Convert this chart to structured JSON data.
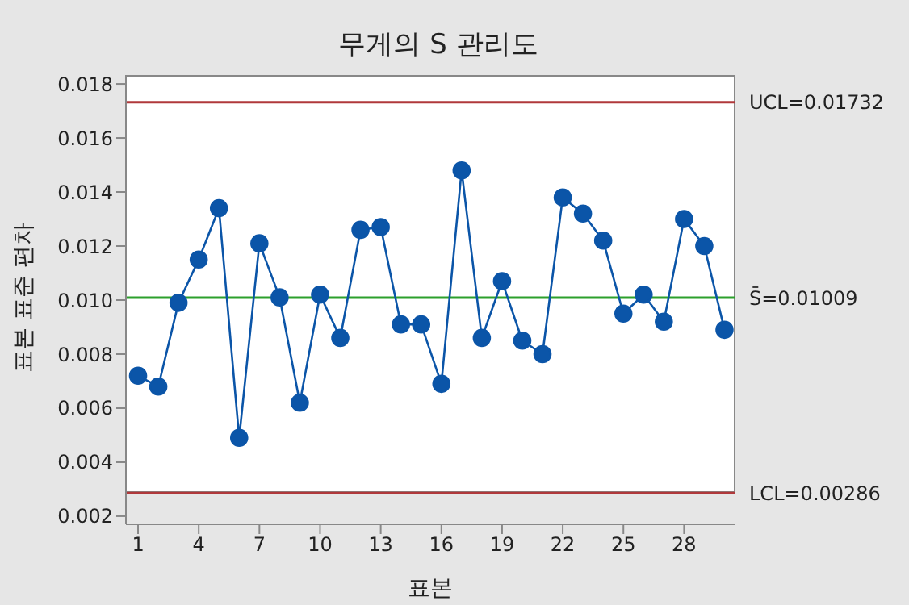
{
  "chart_data": {
    "type": "line",
    "title": "무게의 S 관리도",
    "xlabel": "표본",
    "ylabel": "표본 표준 편차",
    "x": [
      1,
      2,
      3,
      4,
      5,
      6,
      7,
      8,
      9,
      10,
      11,
      12,
      13,
      14,
      15,
      16,
      17,
      18,
      19,
      20,
      21,
      22,
      23,
      24,
      25,
      26,
      27,
      28,
      29,
      30
    ],
    "series": [
      {
        "color": "#0b55a8",
        "values": [
          0.0072,
          0.0068,
          0.0099,
          0.0115,
          0.0134,
          0.0049,
          0.0121,
          0.0101,
          0.0062,
          0.0102,
          0.0086,
          0.0126,
          0.0127,
          0.0091,
          0.0091,
          0.0069,
          0.0148,
          0.0086,
          0.0107,
          0.0085,
          0.008,
          0.0138,
          0.0132,
          0.0122,
          0.0095,
          0.0102,
          0.0092,
          0.013,
          0.012,
          0.0089
        ]
      }
    ],
    "xlim": [
      0.4,
      30.5
    ],
    "xticks": [
      1,
      4,
      7,
      10,
      13,
      16,
      19,
      22,
      25,
      28
    ],
    "ylim": [
      0.0017,
      0.0183
    ],
    "yticks": [
      0.002,
      0.004,
      0.006,
      0.008,
      {
        "value": 0.01,
        "label": "0.010"
      },
      0.012,
      0.014,
      0.016,
      0.018
    ],
    "ref_lines": [
      {
        "axis": "y",
        "value": 0.01732,
        "label": "UCL=0.01732",
        "color": "#b0393b"
      },
      {
        "axis": "y",
        "value": 0.01009,
        "label": "S̄=0.01009",
        "color": "#2ca02c"
      },
      {
        "axis": "y",
        "value": 0.00286,
        "label": "LCL=0.00286",
        "color": "#b0393b"
      }
    ],
    "marker": "circle",
    "line_style": "solid",
    "grid": false,
    "legend": false
  }
}
